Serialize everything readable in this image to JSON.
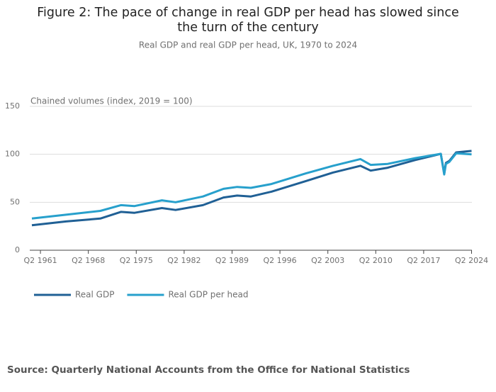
{
  "chart_data": {
    "type": "line",
    "title": "Figure 2: The pace of change in real GDP per head has slowed since the turn of the century",
    "subtitle": "Real GDP and real GDP per head, UK, 1970 to 2024",
    "y_label": "Chained volumes (index, 2019 = 100)",
    "x": [
      1960,
      1965,
      1970,
      1973,
      1975,
      1979,
      1981,
      1985,
      1988,
      1990,
      1992,
      1995,
      2000,
      2004,
      2008,
      2009.5,
      2012,
      2016,
      2019.75,
      2020.25,
      2020.5,
      2021,
      2022,
      2024.25
    ],
    "series": [
      {
        "name": "Real GDP",
        "color": "#206095",
        "values": [
          26,
          30,
          33,
          40,
          39,
          44,
          42,
          47,
          55,
          57,
          56,
          61,
          72,
          81,
          88,
          83,
          86,
          94,
          100.5,
          80,
          91,
          93,
          102,
          103.5
        ]
      },
      {
        "name": "Real GDP per head",
        "color": "#27a0cc",
        "values": [
          33,
          37,
          41,
          47,
          46,
          52,
          50,
          56,
          64,
          66,
          65,
          69,
          80,
          88,
          95,
          89,
          90,
          96,
          100.5,
          79,
          90,
          92,
          101,
          100
        ]
      }
    ],
    "xlim": [
      1960,
      2024.3
    ],
    "xticks": [
      {
        "value": 1961.25,
        "label": "Q2 1961"
      },
      {
        "value": 1968.25,
        "label": "Q2 1968"
      },
      {
        "value": 1975.25,
        "label": "Q2 1975"
      },
      {
        "value": 1982.25,
        "label": "Q2 1982"
      },
      {
        "value": 1989.25,
        "label": "Q2 1989"
      },
      {
        "value": 1996.25,
        "label": "Q2 1996"
      },
      {
        "value": 2003.25,
        "label": "Q2 2003"
      },
      {
        "value": 2010.25,
        "label": "Q2 2010"
      },
      {
        "value": 2017.25,
        "label": "Q2 2017"
      },
      {
        "value": 2024.25,
        "label": "Q2 2024"
      }
    ],
    "ylim": [
      0,
      150
    ],
    "yticks": [
      0,
      50,
      100,
      150
    ],
    "grid": true,
    "legend": "bottom-left",
    "source": "Source: Quarterly National Accounts  from the Office for National Statistics"
  }
}
